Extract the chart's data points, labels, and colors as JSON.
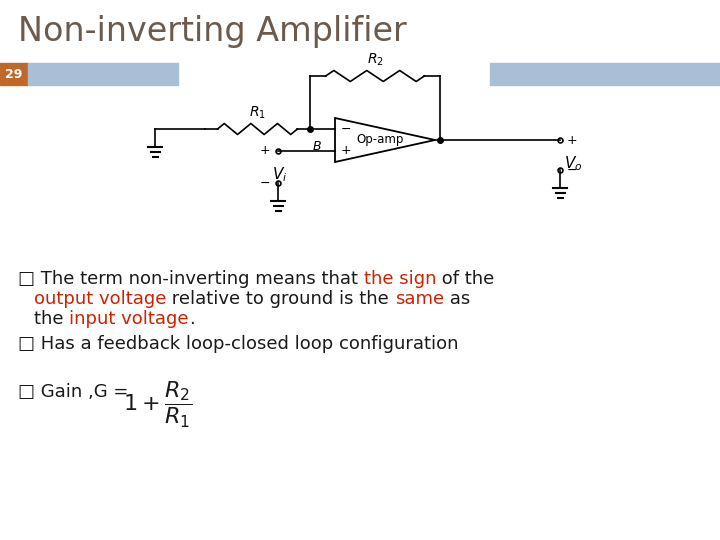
{
  "title": "Non-inverting Amplifier",
  "title_color": "#6b5b4e",
  "title_fontsize": 24,
  "slide_num": "29",
  "slide_num_bg": "#c0672a",
  "slide_num_color": "white",
  "header_bar_color": "#a8c0d6",
  "bg_color": "#ffffff",
  "text_color": "#1a1a1a",
  "red_color": "#cc2200",
  "text_fontsize": 13,
  "bullet_symbol": "□",
  "bullet1_segments": [
    [
      "□ The term non-inverting means that ",
      "#1a1a1a"
    ],
    [
      "the sign",
      "#cc2200"
    ],
    [
      " of the",
      "#1a1a1a"
    ]
  ],
  "bullet1_line2": [
    [
      "output voltage",
      "#cc2200"
    ],
    [
      " relative to ground is the ",
      "#1a1a1a"
    ],
    [
      "same",
      "#cc2200"
    ],
    [
      " as",
      "#1a1a1a"
    ]
  ],
  "bullet1_line3": [
    [
      "the ",
      "#1a1a1a"
    ],
    [
      "input voltage",
      "#cc2200"
    ],
    [
      ".",
      "#1a1a1a"
    ]
  ],
  "bullet2": "□ Has a feedback loop-closed loop configuration",
  "bullet3": "□ Gain ,G = "
}
